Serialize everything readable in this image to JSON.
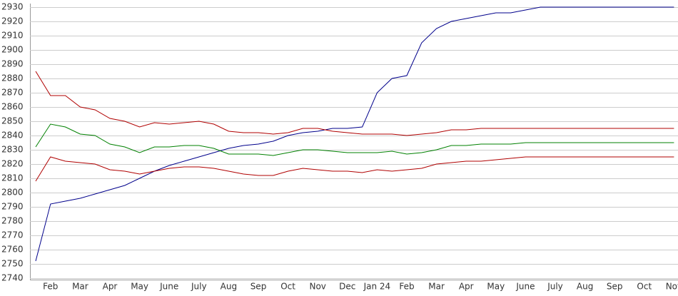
{
  "chart_data": {
    "type": "line",
    "categories": [
      null,
      "Feb",
      null,
      "Mar",
      null,
      "Apr",
      null,
      "May",
      null,
      "June",
      null,
      "July",
      null,
      "Aug",
      null,
      "Sep",
      null,
      "Oct",
      null,
      "Nov",
      null,
      "Dec",
      null,
      "Jan 24",
      null,
      "Feb",
      null,
      "Mar",
      null,
      "Apr",
      null,
      "May",
      null,
      "June",
      null,
      "July",
      null,
      "Aug",
      null,
      "Sep",
      null,
      "Oct",
      null,
      "Nov"
    ],
    "series": [
      {
        "color": "#00008b",
        "values": [
          2752,
          2792,
          2794,
          2796,
          2799,
          2802,
          2805,
          2810,
          2815,
          2819,
          2822,
          2825,
          2828,
          2831,
          2833,
          2834,
          2836,
          2840,
          2842,
          2843,
          2845,
          2845,
          2846,
          2870,
          2880,
          2882,
          2905,
          2915,
          2920,
          2922,
          2924,
          2926,
          2926,
          2928,
          2930,
          2930,
          2930,
          2930,
          2930,
          2930,
          2930,
          2930,
          2930,
          2930
        ]
      },
      {
        "color": "#b00000",
        "values": [
          2885,
          2868,
          2868,
          2860,
          2858,
          2852,
          2850,
          2846,
          2849,
          2848,
          2849,
          2850,
          2848,
          2843,
          2842,
          2842,
          2841,
          2842,
          2845,
          2845,
          2843,
          2842,
          2841,
          2841,
          2841,
          2840,
          2841,
          2842,
          2844,
          2844,
          2845,
          2845,
          2845,
          2845,
          2845,
          2845,
          2845,
          2845,
          2845,
          2845,
          2845,
          2845,
          2845,
          2845
        ]
      },
      {
        "color": "#008000",
        "values": [
          2832,
          2848,
          2846,
          2841,
          2840,
          2834,
          2832,
          2828,
          2832,
          2832,
          2833,
          2833,
          2831,
          2827,
          2827,
          2827,
          2826,
          2828,
          2830,
          2830,
          2829,
          2828,
          2828,
          2828,
          2829,
          2827,
          2828,
          2830,
          2833,
          2833,
          2834,
          2834,
          2834,
          2835,
          2835,
          2835,
          2835,
          2835,
          2835,
          2835,
          2835,
          2835,
          2835,
          2835
        ]
      },
      {
        "color": "#b00000",
        "values": [
          2808,
          2825,
          2822,
          2821,
          2820,
          2816,
          2815,
          2813,
          2815,
          2817,
          2818,
          2818,
          2817,
          2815,
          2813,
          2812,
          2812,
          2815,
          2817,
          2816,
          2815,
          2815,
          2814,
          2816,
          2815,
          2816,
          2817,
          2820,
          2821,
          2822,
          2822,
          2823,
          2824,
          2825,
          2825,
          2825,
          2825,
          2825,
          2825,
          2825,
          2825,
          2825,
          2825,
          2825
        ]
      }
    ],
    "ylim": [
      2740,
      2930
    ],
    "yticks": [
      2740,
      2750,
      2760,
      2770,
      2780,
      2790,
      2800,
      2810,
      2820,
      2830,
      2840,
      2850,
      2860,
      2870,
      2880,
      2890,
      2900,
      2910,
      2920,
      2930
    ],
    "grid": true
  }
}
